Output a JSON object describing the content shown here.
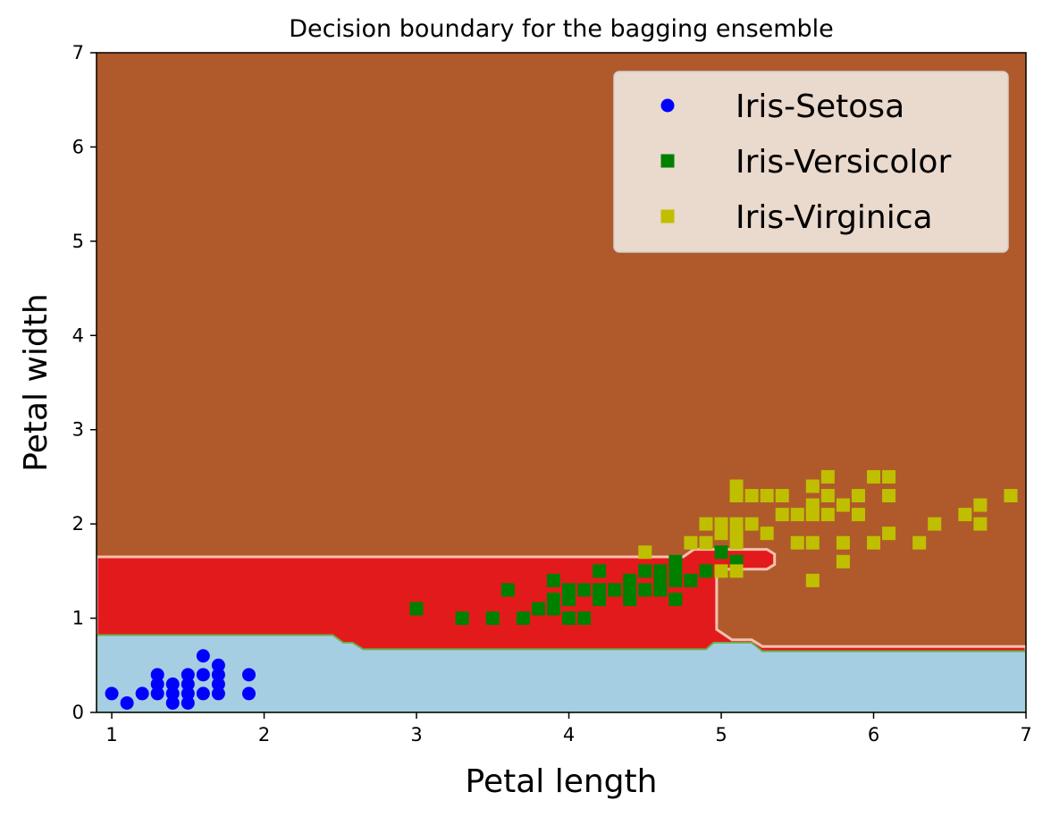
{
  "chart_data": {
    "type": "scatter",
    "title": "Decision boundary for the bagging ensemble",
    "xlabel": "Petal length",
    "ylabel": "Petal width",
    "xlim": [
      0.9,
      7
    ],
    "ylim": [
      0,
      7
    ],
    "x_ticks": [
      "1",
      "2",
      "3",
      "4",
      "5",
      "6",
      "7"
    ],
    "y_ticks": [
      "0",
      "1",
      "2",
      "3",
      "4",
      "5",
      "6",
      "7"
    ],
    "grid": false,
    "legend_position": "top-right",
    "background_regions": [
      {
        "class": "Iris-Virginica region",
        "color": "#b05a2b"
      },
      {
        "class": "Iris-Versicolor region",
        "color": "#e31a1c"
      },
      {
        "class": "Iris-Setosa region",
        "color": "#a6cee3"
      }
    ],
    "boundaries": {
      "setosa_top": [
        [
          0.9,
          0.82
        ],
        [
          2.45,
          0.82
        ],
        [
          2.52,
          0.74
        ],
        [
          2.58,
          0.74
        ],
        [
          2.65,
          0.67
        ],
        [
          4.9,
          0.67
        ],
        [
          4.95,
          0.74
        ],
        [
          5.2,
          0.74
        ],
        [
          5.27,
          0.65
        ],
        [
          7,
          0.65
        ]
      ],
      "versicolor_top": [
        [
          0.9,
          1.65
        ],
        [
          4.75,
          1.65
        ],
        [
          4.82,
          1.73
        ],
        [
          5.3,
          1.73
        ],
        [
          5.35,
          1.68
        ],
        [
          5.35,
          1.57
        ],
        [
          5.3,
          1.52
        ],
        [
          4.97,
          1.52
        ],
        [
          4.97,
          0.88
        ],
        [
          5.07,
          0.77
        ],
        [
          5.2,
          0.77
        ],
        [
          5.27,
          0.7
        ],
        [
          7,
          0.7
        ]
      ]
    },
    "series": [
      {
        "name": "Iris-Setosa",
        "marker": "circle",
        "color": "#0000ff",
        "points": [
          [
            1.0,
            0.2
          ],
          [
            1.1,
            0.1
          ],
          [
            1.2,
            0.2
          ],
          [
            1.3,
            0.2
          ],
          [
            1.3,
            0.3
          ],
          [
            1.3,
            0.4
          ],
          [
            1.4,
            0.1
          ],
          [
            1.4,
            0.2
          ],
          [
            1.4,
            0.3
          ],
          [
            1.5,
            0.1
          ],
          [
            1.5,
            0.2
          ],
          [
            1.5,
            0.3
          ],
          [
            1.5,
            0.4
          ],
          [
            1.6,
            0.2
          ],
          [
            1.6,
            0.4
          ],
          [
            1.6,
            0.6
          ],
          [
            1.7,
            0.2
          ],
          [
            1.7,
            0.3
          ],
          [
            1.7,
            0.4
          ],
          [
            1.7,
            0.5
          ],
          [
            1.9,
            0.2
          ],
          [
            1.9,
            0.4
          ]
        ]
      },
      {
        "name": "Iris-Versicolor",
        "marker": "square",
        "color": "#008000",
        "points": [
          [
            3.0,
            1.1
          ],
          [
            3.3,
            1.0
          ],
          [
            3.5,
            1.0
          ],
          [
            3.6,
            1.3
          ],
          [
            3.7,
            1.0
          ],
          [
            3.8,
            1.1
          ],
          [
            3.9,
            1.1
          ],
          [
            3.9,
            1.2
          ],
          [
            3.9,
            1.4
          ],
          [
            4.0,
            1.0
          ],
          [
            4.0,
            1.2
          ],
          [
            4.0,
            1.3
          ],
          [
            4.1,
            1.0
          ],
          [
            4.1,
            1.3
          ],
          [
            4.2,
            1.2
          ],
          [
            4.2,
            1.3
          ],
          [
            4.2,
            1.5
          ],
          [
            4.3,
            1.3
          ],
          [
            4.4,
            1.2
          ],
          [
            4.4,
            1.3
          ],
          [
            4.4,
            1.4
          ],
          [
            4.5,
            1.3
          ],
          [
            4.5,
            1.5
          ],
          [
            4.6,
            1.3
          ],
          [
            4.6,
            1.4
          ],
          [
            4.6,
            1.5
          ],
          [
            4.7,
            1.2
          ],
          [
            4.7,
            1.4
          ],
          [
            4.7,
            1.5
          ],
          [
            4.7,
            1.6
          ],
          [
            4.8,
            1.4
          ],
          [
            4.9,
            1.5
          ],
          [
            5.0,
            1.7
          ],
          [
            5.1,
            1.6
          ]
        ]
      },
      {
        "name": "Iris-Virginica",
        "marker": "square",
        "color": "#bfbf00",
        "points": [
          [
            4.5,
            1.7
          ],
          [
            4.8,
            1.8
          ],
          [
            4.9,
            1.8
          ],
          [
            4.9,
            2.0
          ],
          [
            5.0,
            1.5
          ],
          [
            5.0,
            1.9
          ],
          [
            5.0,
            2.0
          ],
          [
            5.1,
            1.5
          ],
          [
            5.1,
            1.8
          ],
          [
            5.1,
            1.9
          ],
          [
            5.1,
            2.0
          ],
          [
            5.1,
            2.3
          ],
          [
            5.1,
            2.4
          ],
          [
            5.2,
            2.0
          ],
          [
            5.2,
            2.3
          ],
          [
            5.3,
            1.9
          ],
          [
            5.3,
            2.3
          ],
          [
            5.4,
            2.1
          ],
          [
            5.4,
            2.3
          ],
          [
            5.5,
            1.8
          ],
          [
            5.5,
            2.1
          ],
          [
            5.6,
            1.4
          ],
          [
            5.6,
            1.8
          ],
          [
            5.6,
            2.1
          ],
          [
            5.6,
            2.2
          ],
          [
            5.6,
            2.4
          ],
          [
            5.7,
            2.1
          ],
          [
            5.7,
            2.3
          ],
          [
            5.7,
            2.5
          ],
          [
            5.8,
            1.6
          ],
          [
            5.8,
            1.8
          ],
          [
            5.8,
            2.2
          ],
          [
            5.9,
            2.1
          ],
          [
            5.9,
            2.3
          ],
          [
            6.0,
            1.8
          ],
          [
            6.0,
            2.5
          ],
          [
            6.1,
            1.9
          ],
          [
            6.1,
            2.3
          ],
          [
            6.1,
            2.5
          ],
          [
            6.3,
            1.8
          ],
          [
            6.4,
            2.0
          ],
          [
            6.6,
            2.1
          ],
          [
            6.7,
            2.0
          ],
          [
            6.7,
            2.2
          ],
          [
            6.9,
            2.3
          ]
        ]
      }
    ]
  }
}
